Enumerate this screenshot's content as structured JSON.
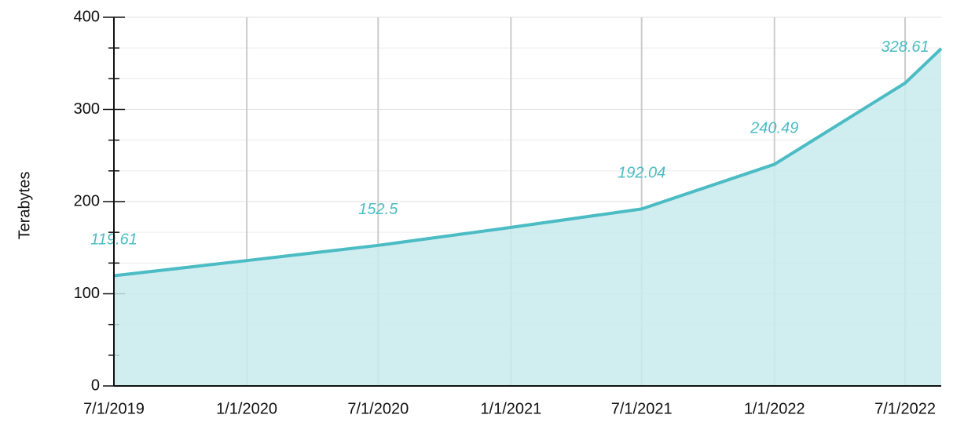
{
  "chart_data": {
    "type": "area",
    "y_label": "Terabytes",
    "x": [
      "7/1/2019",
      "1/1/2020",
      "7/1/2020",
      "1/1/2021",
      "7/1/2021",
      "1/1/2022",
      "7/1/2022",
      "8/20/2022"
    ],
    "series": [
      {
        "name": "Terabytes",
        "color": "#4bbcc4",
        "fill": "#c8eaed",
        "values": [
          119.61,
          136,
          152.5,
          172,
          192.04,
          240.49,
          328.61,
          366
        ],
        "value_labels": [
          "119.61",
          null,
          "152.5",
          null,
          "192.04",
          "240.49",
          "328.61",
          null
        ]
      }
    ],
    "xlim": [
      "7/1/2019",
      "8/20/2022"
    ],
    "xticks": [
      "7/1/2019",
      "1/1/2020",
      "7/1/2020",
      "1/1/2021",
      "7/1/2021",
      "1/1/2022",
      "7/1/2022"
    ],
    "ylim": [
      0,
      400
    ],
    "yticks": [
      0,
      100,
      200,
      300,
      400
    ],
    "minor_ticks_per_interval": 3,
    "grid": true
  }
}
